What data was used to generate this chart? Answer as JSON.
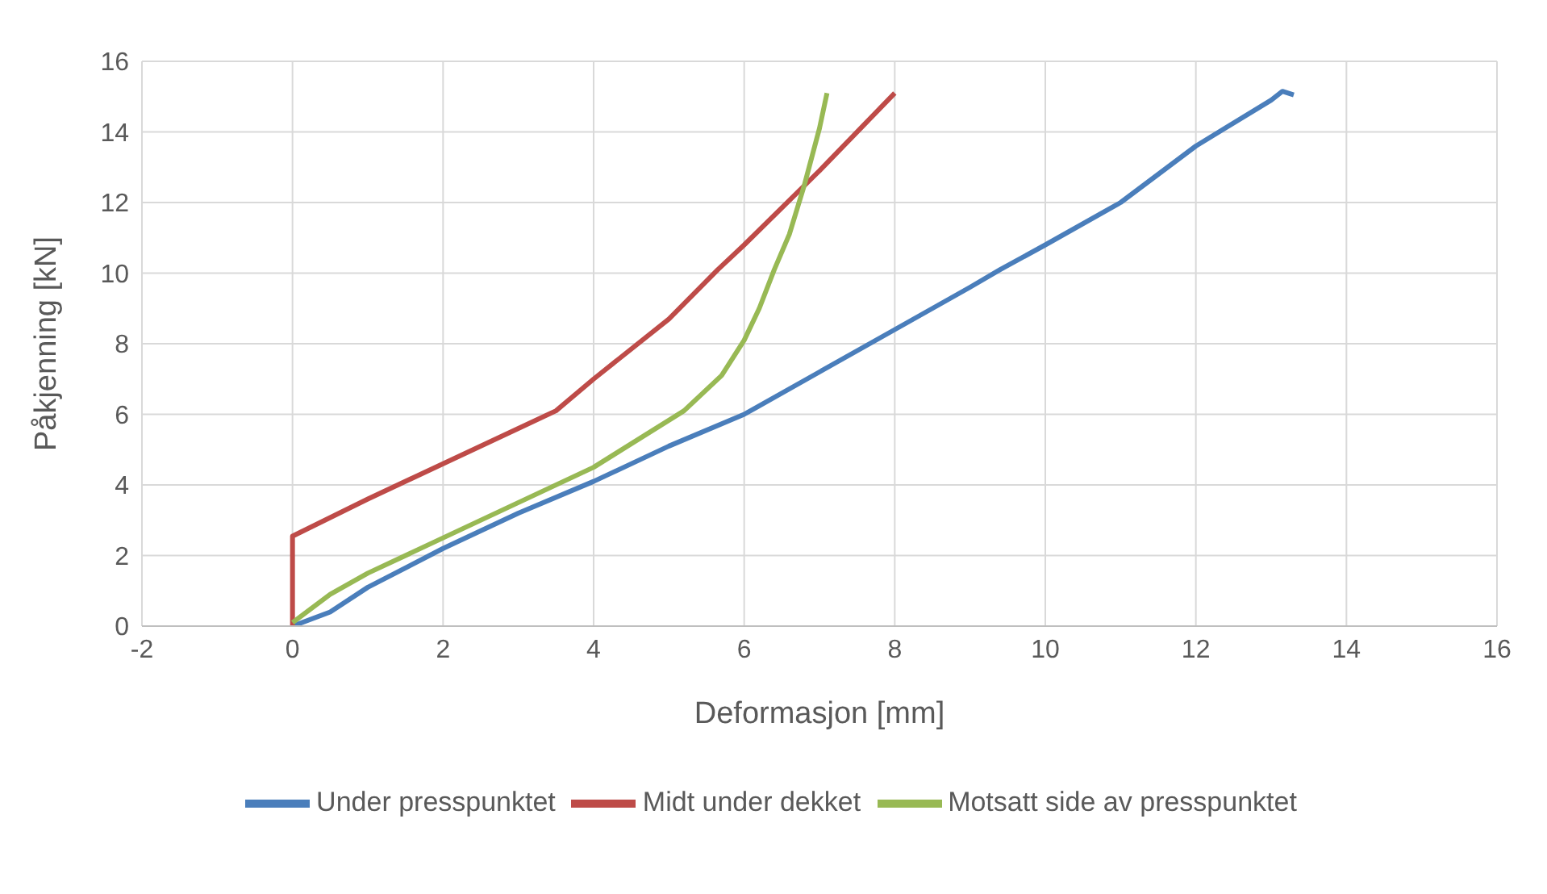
{
  "chart_data": {
    "type": "line",
    "xlabel": "Deformasjon [mm]",
    "ylabel": "Påkjenning [kN]",
    "xlim": [
      -2,
      16
    ],
    "xticks": [
      -2,
      0,
      2,
      4,
      6,
      8,
      10,
      12,
      14,
      16
    ],
    "ylim": [
      0,
      16
    ],
    "yticks": [
      0,
      2,
      4,
      6,
      8,
      10,
      12,
      14,
      16
    ],
    "grid": true,
    "legend": "bottom",
    "marker": "none",
    "line_style": "solid",
    "series": [
      {
        "name": "Under presspunktet",
        "color": "#4a7ebb",
        "x": [
          0,
          0.5,
          1,
          2,
          3,
          4,
          5,
          6,
          7,
          8,
          9,
          9.4,
          10,
          11,
          12,
          13,
          13.15,
          13.3
        ],
        "values": [
          0,
          0.4,
          1.1,
          2.2,
          3.2,
          4.1,
          5.1,
          6,
          7.2,
          8.4,
          9.6,
          10.1,
          10.8,
          12,
          13.6,
          14.9,
          15.15,
          15.05
        ]
      },
      {
        "name": "Midt under dekket",
        "color": "#be4b48",
        "x": [
          0,
          0,
          1,
          2,
          3,
          3.5,
          4,
          5,
          5.65,
          6,
          7,
          8
        ],
        "values": [
          0,
          2.55,
          3.6,
          4.6,
          5.6,
          6.1,
          7,
          8.7,
          10.1,
          10.8,
          12.9,
          15.1
        ]
      },
      {
        "name": "Motsatt side av presspunktet",
        "color": "#98b954",
        "x": [
          0,
          0.5,
          1,
          2,
          3,
          4,
          5.2,
          5.7,
          6,
          6.2,
          6.4,
          6.6,
          6.8,
          7,
          7.1
        ],
        "values": [
          0.1,
          0.9,
          1.5,
          2.5,
          3.5,
          4.5,
          6.1,
          7.1,
          8.1,
          9,
          10.1,
          11.1,
          12.5,
          14.1,
          15.1
        ]
      }
    ]
  }
}
